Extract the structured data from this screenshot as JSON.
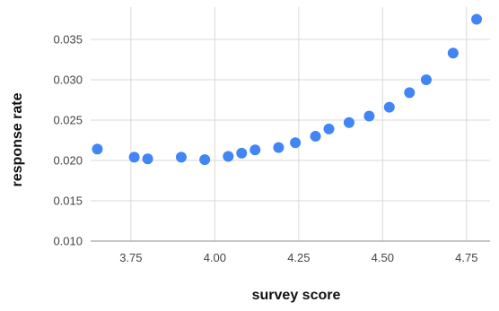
{
  "chart_data": {
    "type": "scatter",
    "title": "",
    "xlabel": "survey score",
    "ylabel": "response rate",
    "xlim": [
      3.63,
      4.82
    ],
    "ylim": [
      0.01,
      0.039
    ],
    "x_ticks": [
      3.75,
      4.0,
      4.25,
      4.5,
      4.75
    ],
    "x_tick_labels": [
      "3.75",
      "4.00",
      "4.25",
      "4.50",
      "4.75"
    ],
    "y_ticks": [
      0.01,
      0.015,
      0.02,
      0.025,
      0.03,
      0.035
    ],
    "y_tick_labels": [
      "0.010",
      "0.015",
      "0.020",
      "0.025",
      "0.030",
      "0.035"
    ],
    "grid": true,
    "legend": "none",
    "point_color": "#4285f4",
    "series": [
      {
        "x": [
          3.65,
          3.76,
          3.8,
          3.9,
          3.97,
          4.04,
          4.08,
          4.12,
          4.19,
          4.24,
          4.3,
          4.34,
          4.4,
          4.46,
          4.52,
          4.58,
          4.63,
          4.71,
          4.78
        ],
        "y": [
          0.0214,
          0.0204,
          0.0202,
          0.0204,
          0.0201,
          0.0205,
          0.0209,
          0.0213,
          0.0216,
          0.0222,
          0.023,
          0.0239,
          0.0247,
          0.0255,
          0.0266,
          0.0284,
          0.03,
          0.0333,
          0.0375
        ]
      }
    ]
  }
}
